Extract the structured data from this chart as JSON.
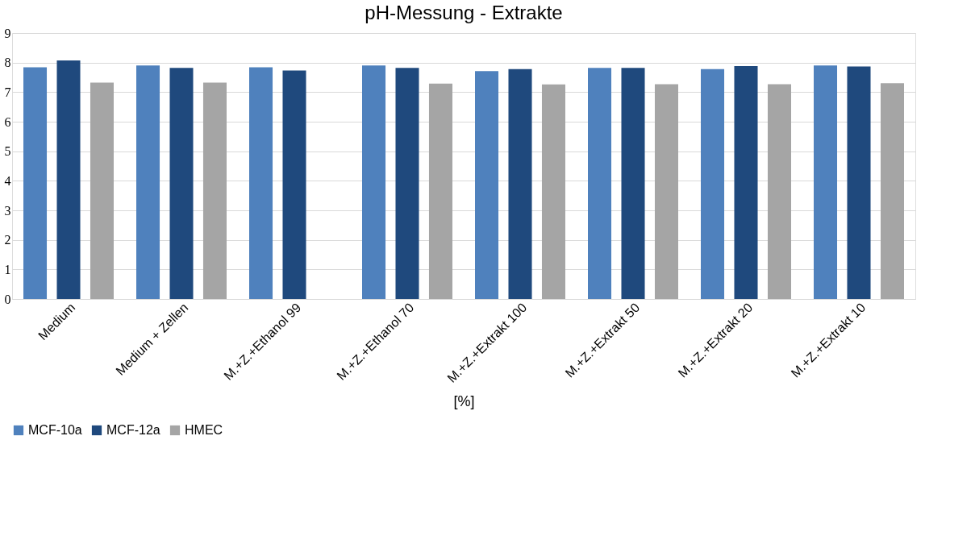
{
  "chart_data": {
    "type": "bar",
    "title": "pH-Messung - Extrakte",
    "xlabel": "[%]",
    "categories": [
      "Medium",
      "Medium + Zellen",
      "M.+Z.+Ethanol 99",
      "M.+Z.+Ethanol 70",
      "M.+Z.+Extrakt 100",
      "M.+Z.+Extrakt 50",
      "M.+Z.+Extrakt 20",
      "M.+Z.+Extrakt 10"
    ],
    "series": [
      {
        "name": "MCF-10a",
        "color": "#4f81bd",
        "values": [
          7.84,
          7.9,
          7.84,
          7.9,
          7.71,
          7.82,
          7.78,
          7.9
        ]
      },
      {
        "name": "MCF-12a",
        "color": "#1f497d",
        "values": [
          8.07,
          7.82,
          7.73,
          7.82,
          7.78,
          7.82,
          7.88,
          7.87
        ]
      },
      {
        "name": "HMEC",
        "color": "#a5a5a5",
        "values": [
          7.32,
          7.32,
          null,
          7.29,
          7.26,
          7.27,
          7.27,
          7.3
        ]
      }
    ],
    "ylim": [
      0,
      9
    ],
    "yticks": [
      0,
      1,
      2,
      3,
      4,
      5,
      6,
      7,
      8,
      9
    ],
    "grid": "y",
    "legend": "bottom"
  }
}
